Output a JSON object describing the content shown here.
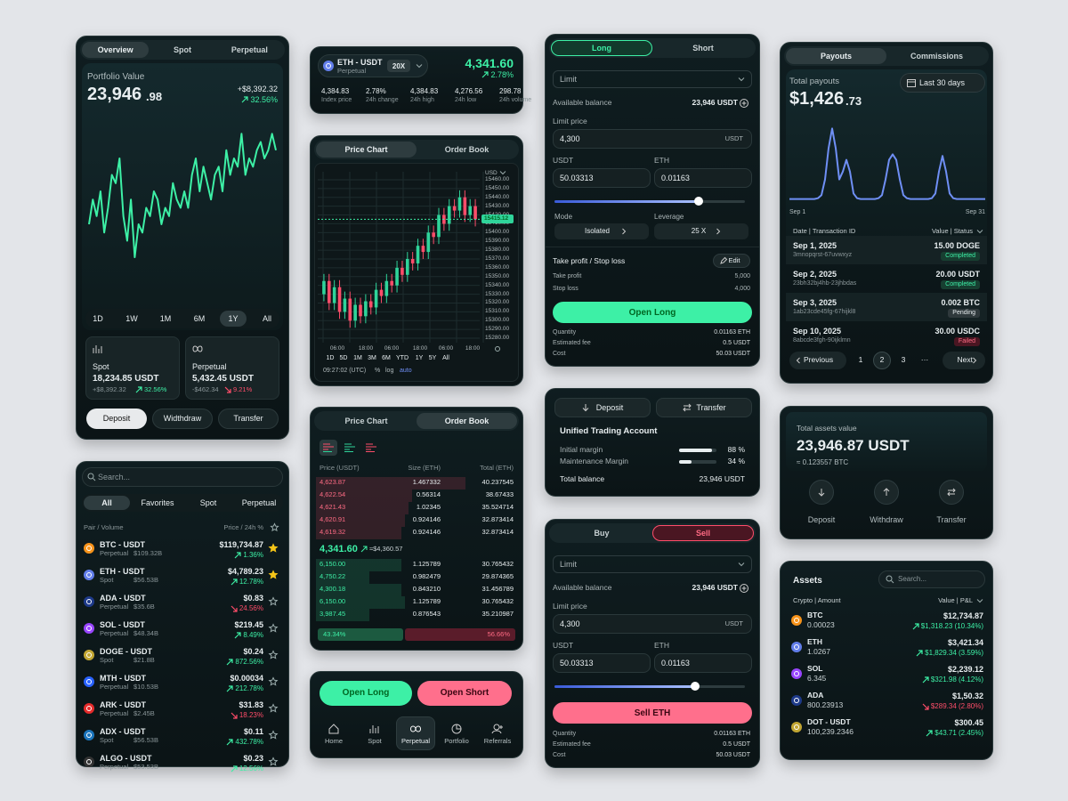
{
  "portfolio": {
    "tabs": [
      "Overview",
      "Spot",
      "Perpetual"
    ],
    "label": "Portfolio Value",
    "value": "23,946",
    "value_decimals": ".98",
    "change": "+$8,392.32",
    "change_pct": "32.56%",
    "chart": {
      "values": [
        40,
        55,
        45,
        60,
        35,
        50,
        70,
        65,
        80,
        45,
        30,
        55,
        20,
        40,
        35,
        50,
        45,
        60,
        55,
        40,
        50,
        45,
        65,
        55,
        50,
        60,
        50,
        70,
        80,
        60,
        75,
        65,
        55,
        70,
        75,
        60,
        85,
        70,
        80,
        75,
        95,
        70,
        80,
        75,
        85,
        90,
        80,
        85,
        95,
        85
      ],
      "ylim": [
        0,
        100
      ],
      "color": "#3df0a6"
    },
    "ranges": [
      "1D",
      "1W",
      "1M",
      "6M",
      "1Y",
      "All"
    ],
    "active_range": 4,
    "accounts": [
      {
        "name": "Spot",
        "value": "18,234.85 USDT",
        "change": "+$8,392.32",
        "pct": "32.56%",
        "dir": "up"
      },
      {
        "name": "Perpetual",
        "value": "5,432.45 USDT",
        "change": "-$462.34",
        "pct": "9.21%",
        "dir": "down"
      }
    ],
    "actions": [
      "Deposit",
      "Widthdraw",
      "Transfer"
    ]
  },
  "markets": {
    "search": "Search...",
    "tabs": [
      "All",
      "Favorites",
      "Spot",
      "Perpetual"
    ],
    "col_left": "Pair / Volume",
    "col_right": "Price / 24h %",
    "rows": [
      {
        "pair": "BTC - USDT",
        "market": "Perpetual",
        "volume": "$109.32B",
        "price": "$119,734.87",
        "pct": "1.36%",
        "dir": "up",
        "fav": true,
        "color": "#f7931a"
      },
      {
        "pair": "ETH - USDT",
        "market": "Spot",
        "volume": "$56.53B",
        "price": "$4,789.23",
        "pct": "12.78%",
        "dir": "up",
        "fav": true,
        "color": "#627eea"
      },
      {
        "pair": "ADA - USDT",
        "market": "Perpetual",
        "volume": "$35.6B",
        "price": "$0.83",
        "pct": "24.56%",
        "dir": "down",
        "fav": false,
        "color": "#1e3a8a"
      },
      {
        "pair": "SOL - USDT",
        "market": "Perpetual",
        "volume": "$48.34B",
        "price": "$219.45",
        "pct": "8.49%",
        "dir": "up",
        "fav": false,
        "color": "#9945ff"
      },
      {
        "pair": "DOGE - USDT",
        "market": "Spot",
        "volume": "$21.8B",
        "price": "$0.24",
        "pct": "872.56%",
        "dir": "up",
        "fav": false,
        "color": "#c2a633"
      },
      {
        "pair": "MTH - USDT",
        "market": "Perpetual",
        "volume": "$10.53B",
        "price": "$0.00034",
        "pct": "212.78%",
        "dir": "up",
        "fav": false,
        "color": "#2962ff"
      },
      {
        "pair": "ARK - USDT",
        "market": "Perpetual",
        "volume": "$2.45B",
        "price": "$31.83",
        "pct": "18.23%",
        "dir": "down",
        "fav": false,
        "color": "#e52b2b"
      },
      {
        "pair": "ADX - USDT",
        "market": "Spot",
        "volume": "$56.53B",
        "price": "$0.11",
        "pct": "432.78%",
        "dir": "up",
        "fav": false,
        "color": "#1b75bc"
      },
      {
        "pair": "ALGO - USDT",
        "market": "Perpetual",
        "volume": "$53.53B",
        "price": "$0.23",
        "pct": "12.56%",
        "dir": "up",
        "fav": false,
        "color": "#333333"
      }
    ]
  },
  "eth_header": {
    "pair": "ETH - USDT",
    "market": "Perpetual",
    "leverage": "20X",
    "price": "4,341.60",
    "pct": "2.78%",
    "stats": [
      {
        "value": "4,384.83",
        "label": "Index price"
      },
      {
        "value": "2.78%",
        "label": "24h change"
      },
      {
        "value": "4,384.83",
        "label": "24h high"
      },
      {
        "value": "4,276.56",
        "label": "24h low"
      },
      {
        "value": "298.78",
        "label": "24h volume"
      }
    ]
  },
  "price_chart": {
    "tabs": [
      "Price Chart",
      "Order Book"
    ],
    "currency": "USD",
    "chart": {
      "type": "candlestick",
      "ylim": [
        15275,
        15465
      ],
      "yticks": [
        {
          "value": 15460,
          "label": "15460.00"
        },
        {
          "value": 15450,
          "label": "15450.00"
        },
        {
          "value": 15440,
          "label": "15440.00"
        },
        {
          "value": 15430,
          "label": "15430.00"
        },
        {
          "value": 15420,
          "label": "15420.00"
        },
        {
          "value": 15410,
          "label": "15410.00"
        },
        {
          "value": 15400,
          "label": "15400.00"
        },
        {
          "value": 15390,
          "label": "15390.00"
        },
        {
          "value": 15380,
          "label": "15380.00"
        },
        {
          "value": 15370,
          "label": "15370.00"
        },
        {
          "value": 15360,
          "label": "15360.00"
        },
        {
          "value": 15350,
          "label": "15350.00"
        },
        {
          "value": 15340,
          "label": "15340.00"
        },
        {
          "value": 15330,
          "label": "15330.00"
        },
        {
          "value": 15320,
          "label": "15320.00"
        },
        {
          "value": 15310,
          "label": "15310.00"
        },
        {
          "value": 15300,
          "label": "15300.00"
        },
        {
          "value": 15290,
          "label": "15290.00"
        },
        {
          "value": 15280,
          "label": "15280.00"
        }
      ],
      "last_price": 15415.12,
      "open": [
        15330,
        15345,
        15320,
        15338,
        15310,
        15325,
        15300,
        15318,
        15305,
        15322,
        15315,
        15335,
        15328,
        15345,
        15340,
        15360,
        15352,
        15370,
        15365,
        15385,
        15378,
        15400,
        15395,
        15420,
        15410,
        15430,
        15425,
        15440,
        15420,
        15430
      ],
      "high": [
        15353,
        15353,
        15346,
        15346,
        15333,
        15333,
        15326,
        15326,
        15330,
        15330,
        15343,
        15343,
        15353,
        15353,
        15368,
        15368,
        15378,
        15378,
        15393,
        15393,
        15408,
        15408,
        15428,
        15428,
        15438,
        15438,
        15448,
        15448,
        15438,
        15438
      ],
      "low": [
        15322,
        15312,
        15312,
        15302,
        15302,
        15292,
        15292,
        15297,
        15297,
        15307,
        15307,
        15320,
        15320,
        15332,
        15332,
        15344,
        15344,
        15357,
        15357,
        15370,
        15370,
        15387,
        15387,
        15402,
        15402,
        15417,
        15417,
        15412,
        15412,
        15407
      ],
      "close": [
        15345,
        15320,
        15338,
        15310,
        15325,
        15300,
        15318,
        15305,
        15322,
        15315,
        15335,
        15328,
        15345,
        15340,
        15360,
        15352,
        15370,
        15365,
        15385,
        15378,
        15400,
        15395,
        15420,
        15410,
        15430,
        15425,
        15440,
        15420,
        15430,
        15415
      ],
      "xlabels": [
        "06:00",
        "18:00",
        "06:00",
        "18:00",
        "06:00",
        "18:00"
      ]
    },
    "ranges": [
      "1D",
      "5D",
      "1M",
      "3M",
      "6M",
      "YTD",
      "1Y",
      "5Y",
      "All"
    ],
    "time": "09:27:02 (UTC)",
    "percent": "%",
    "log": "log",
    "auto": "auto"
  },
  "order_book": {
    "tabs": [
      "Price Chart",
      "Order Book"
    ],
    "headers": [
      "Price (USDT)",
      "Size (ETH)",
      "Total (ETH)"
    ],
    "asks": [
      [
        "4,623.87",
        "1.467332",
        "40.237545"
      ],
      [
        "4,622.54",
        "0.56314",
        "38.67433"
      ],
      [
        "4,621.43",
        "1.02345",
        "35.524714"
      ],
      [
        "4,620.91",
        "0.924146",
        "32.873414"
      ],
      [
        "4,619.32",
        "0.924146",
        "32.873414"
      ]
    ],
    "mid_price": "4,341.60",
    "mid_usd": "≈$4,360.57",
    "bids": [
      [
        "6,150.00",
        "1.125789",
        "30.765432"
      ],
      [
        "4,750.22",
        "0.982479",
        "29.874365"
      ],
      [
        "4,300.18",
        "0.843210",
        "31.456789"
      ],
      [
        "6,150.00",
        "1.125789",
        "30.765432"
      ],
      [
        "3,987.45",
        "0.876543",
        "35.210987"
      ]
    ],
    "buy_ratio": {
      "value": 43.34,
      "label": "43.34%"
    },
    "sell_ratio": {
      "value": 56.66,
      "label": "56.66%"
    }
  },
  "bottom_nav": {
    "buttons": [
      "Open Long",
      "Open Short"
    ],
    "items": [
      "Home",
      "Spot",
      "Perpetual",
      "Portfolio",
      "Referrals"
    ],
    "active": 2
  },
  "long_form": {
    "tabs": [
      "Long",
      "Short"
    ],
    "order_type": "Limit",
    "available_label": "Available balance",
    "available": "23,946 USDT",
    "limit_label": "Limit price",
    "limit": "4,300",
    "limit_unit": "USDT",
    "amount_labels": [
      "USDT",
      "ETH"
    ],
    "amounts": [
      "50.03313",
      "0.01163"
    ],
    "mode_label": "Mode",
    "leverage_label": "Leverage",
    "mode": "Isolated",
    "leverage": "25 X",
    "tpsl": "Take profit / Stop loss",
    "edit": "Edit",
    "tp_label": "Take profit",
    "tp": "5,000",
    "sl_label": "Stop loss",
    "sl": "4,000",
    "button": "Open Long",
    "summary": [
      [
        "Quantity",
        "0.01163 ETH"
      ],
      [
        "Estimated fee",
        "0.5 USDT"
      ],
      [
        "Cost",
        "50.03 USDT"
      ]
    ]
  },
  "account": {
    "buttons": [
      "Deposit",
      "Transfer"
    ],
    "title": "Unified Trading Account",
    "margins": [
      {
        "label": "Initial margin",
        "pct": {
          "value": 88,
          "label": "88 %"
        }
      },
      {
        "label": "Maintenance Margin",
        "pct": {
          "value": 34,
          "label": "34 %"
        }
      }
    ],
    "total_label": "Total balance",
    "total": "23,946 USDT"
  },
  "sell_form": {
    "tabs": [
      "Buy",
      "Sell"
    ],
    "order_type": "Limit",
    "available_label": "Available balance",
    "available": "23,946 USDT",
    "limit_label": "Limit price",
    "limit": "4,300",
    "limit_unit": "USDT",
    "amount_labels": [
      "USDT",
      "ETH"
    ],
    "amounts": [
      "50.03313",
      "0.01163"
    ],
    "button": "Sell ETH",
    "summary": [
      [
        "Quantity",
        "0.01163 ETH"
      ],
      [
        "Estimated fee",
        "0.5 USDT"
      ],
      [
        "Cost",
        "50.03 USDT"
      ]
    ]
  },
  "payouts": {
    "tabs": [
      "Payouts",
      "Commissions"
    ],
    "label": "Total payouts",
    "value": "$1,426",
    "value_decimals": ".73",
    "period": "Last 30 days",
    "chart": {
      "values": [
        5,
        5,
        5,
        5,
        5,
        5,
        5,
        5,
        6,
        10,
        30,
        70,
        95,
        70,
        30,
        40,
        55,
        40,
        12,
        6,
        5,
        5,
        5,
        5,
        5,
        6,
        10,
        30,
        55,
        62,
        55,
        30,
        10,
        6,
        5,
        5,
        5,
        5,
        5,
        5,
        6,
        12,
        40,
        60,
        40,
        12,
        6,
        5,
        5,
        5,
        5,
        5,
        5,
        5,
        5,
        5
      ],
      "ylim": [
        0,
        100
      ],
      "color": "#6f8ff5"
    },
    "x_start": "Sep 1",
    "x_end": "Sep 31",
    "col_left": "Date | Transaction ID",
    "col_right": "Value | Status",
    "rows": [
      {
        "date": "Sep 1, 2025",
        "id": "3mnopqrst-67uvwxyz",
        "value": "15.00 DOGE",
        "status": "Completed"
      },
      {
        "date": "Sep 2, 2025",
        "id": "23bh32bj4hb-23jhbdas",
        "value": "20.00 USDT",
        "status": "Completed"
      },
      {
        "date": "Sep 3, 2025",
        "id": "1ab23cde45fg-67hijkl8",
        "value": "0.002 BTC",
        "status": "Pending"
      },
      {
        "date": "Sep 10, 2025",
        "id": "8abcde3fgh-90ijklmn",
        "value": "30.00 USDC",
        "status": "Failed"
      }
    ],
    "pagination": {
      "previous": "Previous",
      "pages": [
        "1",
        "2",
        "3",
        "···"
      ],
      "active": 1,
      "next": "Next"
    }
  },
  "total_assets": {
    "label": "Total assets value",
    "value": "23,946.87 USDT",
    "btc": "≈ 0.123557 BTC",
    "actions": [
      "Deposit",
      "Withdraw",
      "Transfer"
    ]
  },
  "assets": {
    "title": "Assets",
    "search": "Search...",
    "col_left": "Crypto | Amount",
    "col_right": "Value | P&L",
    "rows": [
      {
        "symbol": "BTC",
        "amount": "0.00023",
        "value": "$12,734.87",
        "pnl": "$1,318.23 (10.34%)",
        "dir": "up",
        "color": "#f7931a"
      },
      {
        "symbol": "ETH",
        "amount": "1.0267",
        "value": "$3,421.34",
        "pnl": "$1,829.34 (3.59%)",
        "dir": "up",
        "color": "#627eea"
      },
      {
        "symbol": "SOL",
        "amount": "6.345",
        "value": "$2,239.12",
        "pnl": "$321.98 (4.12%)",
        "dir": "up",
        "color": "#9945ff"
      },
      {
        "symbol": "ADA",
        "amount": "800.23913",
        "value": "$1,50.32",
        "pnl": "$289.34 (2.80%)",
        "dir": "down",
        "color": "#1e3a8a"
      },
      {
        "symbol": "DOT - USDT",
        "amount": "100,239.2346",
        "value": "$300.45",
        "pnl": "$43.71 (2.45%)",
        "dir": "up",
        "color": "#c2a633"
      }
    ]
  }
}
